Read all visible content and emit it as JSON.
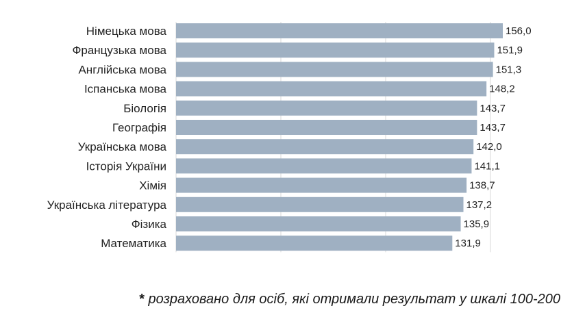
{
  "chart_data": {
    "type": "bar",
    "orientation": "horizontal",
    "categories": [
      "Німецька мова",
      "Французька мова",
      "Англійська мова",
      "Іспанська мова",
      "Біологія",
      "Географія",
      "Українська мова",
      "Історія України",
      "Хімія",
      "Українська література",
      "Фізика",
      "Математика"
    ],
    "values": [
      156.0,
      151.9,
      151.3,
      148.2,
      143.7,
      143.7,
      142.0,
      141.1,
      138.7,
      137.2,
      135.9,
      131.9
    ],
    "value_labels": [
      "156,0",
      "151,9",
      "151,3",
      "148,2",
      "143,7",
      "143,7",
      "142,0",
      "141,1",
      "138,7",
      "137,2",
      "135,9",
      "131,9"
    ],
    "xlim": [
      0,
      156
    ],
    "grid": true,
    "bar_color": "#9fb0c2",
    "grid_color": "#d9d9d9"
  },
  "footnote": {
    "star": "*",
    "text": " розраховано для осіб, які отримали результат у шкалі 100-200"
  }
}
